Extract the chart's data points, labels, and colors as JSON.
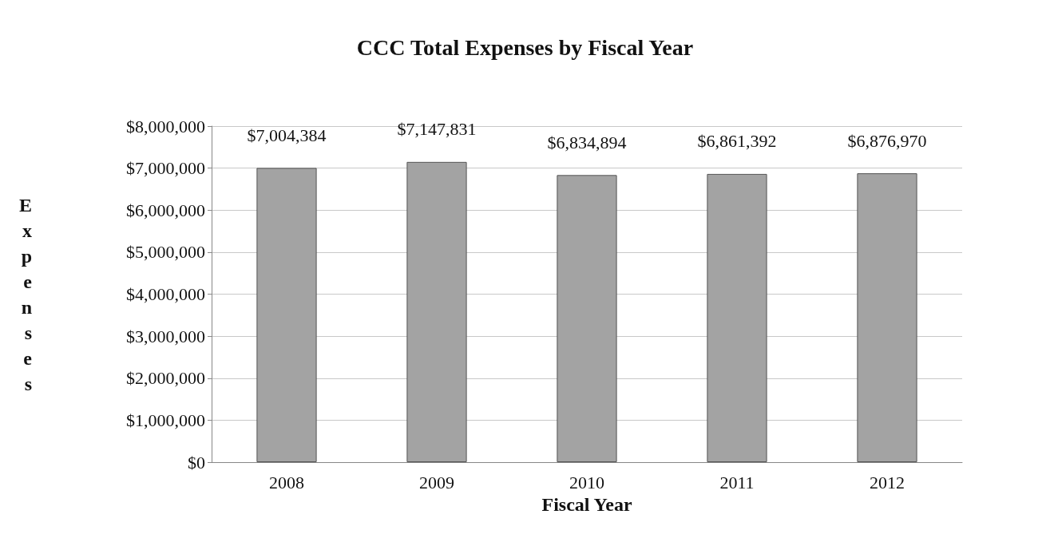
{
  "chart_data": {
    "type": "bar",
    "title": "CCC Total Expenses by Fiscal Year",
    "xlabel": "Fiscal Year",
    "ylabel": "Expenses",
    "categories": [
      "2008",
      "2009",
      "2010",
      "2011",
      "2012"
    ],
    "values": [
      7004384,
      7147831,
      6834894,
      6861392,
      6876970
    ],
    "value_labels": [
      "$7,004,384",
      "$7,147,831",
      "$6,834,894",
      "$6,861,392",
      "$6,876,970"
    ],
    "color": "#a3a3a3",
    "ylim": [
      0,
      8000000
    ],
    "yticks": [
      {
        "value": 0,
        "label": "$0"
      },
      {
        "value": 1000000,
        "label": "$1,000,000"
      },
      {
        "value": 2000000,
        "label": "$2,000,000"
      },
      {
        "value": 3000000,
        "label": "$3,000,000"
      },
      {
        "value": 4000000,
        "label": "$4,000,000"
      },
      {
        "value": 5000000,
        "label": "$5,000,000"
      },
      {
        "value": 6000000,
        "label": "$6,000,000"
      },
      {
        "value": 7000000,
        "label": "$7,000,000"
      },
      {
        "value": 8000000,
        "label": "$8,000,000"
      }
    ],
    "grid": true
  }
}
